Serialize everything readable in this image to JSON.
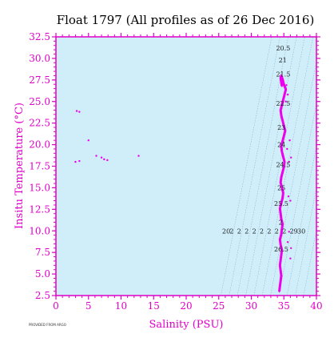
{
  "chart_data": {
    "type": "scatter",
    "title": "Float 1797  (All profiles as of 26 Dec 2016)",
    "xlabel": "Salinity (PSU)",
    "ylabel": "Insitu Temperature (°C)",
    "xlim": [
      0,
      40
    ],
    "ylim": [
      2.5,
      32.5
    ],
    "x_ticks": [
      0,
      5,
      10,
      15,
      20,
      25,
      30,
      35,
      40
    ],
    "y_ticks": [
      2.5,
      5.0,
      7.5,
      10.0,
      12.5,
      15.0,
      17.5,
      20.0,
      22.5,
      25.0,
      27.5,
      30.0,
      32.5
    ],
    "y_tick_labels": [
      "2.5",
      "5.0",
      "7.5",
      "10.0",
      "12.5",
      "15.0",
      "17.5",
      "20.0",
      "22.5",
      "25.0",
      "27.5",
      "30.0",
      "32.5"
    ],
    "grid": false,
    "colors": {
      "plot_background": "#cfeefa",
      "points": "#ee00ee",
      "axis": "#e000c8",
      "contour": "#8fa9c8"
    },
    "series": [
      {
        "x": [
          3.2,
          3.6,
          5.0,
          3.0,
          3.6,
          6.2,
          7.0,
          7.4,
          7.9,
          12.7,
          34.3,
          34.4,
          34.5,
          34.6,
          34.5,
          34.4,
          34.5,
          34.6,
          34.7,
          34.5,
          34.4,
          34.6,
          34.7,
          34.8,
          34.6,
          34.5,
          34.4,
          34.6,
          34.8,
          34.9,
          34.7,
          34.5,
          34.6,
          34.8,
          35.0,
          35.1,
          34.9,
          34.7,
          34.6,
          34.8,
          35.0,
          35.2,
          35.0,
          34.8,
          34.6,
          34.5,
          34.7,
          34.9,
          35.1,
          35.3,
          35.0,
          34.8,
          34.6,
          34.5,
          34.7,
          35.5,
          35.9,
          36.1,
          35.8,
          35.7,
          36.0,
          35.6,
          36.1,
          35.8,
          36.0,
          35.4,
          35.3,
          35.6
        ],
        "y": [
          23.9,
          23.8,
          20.5,
          18.0,
          18.1,
          18.7,
          18.5,
          18.3,
          18.2,
          18.7,
          3.0,
          3.6,
          4.2,
          4.8,
          5.4,
          6.0,
          6.6,
          7.2,
          7.8,
          8.4,
          9.0,
          9.6,
          10.2,
          10.8,
          11.4,
          12.0,
          12.6,
          13.2,
          13.8,
          14.4,
          15.0,
          15.6,
          16.2,
          16.8,
          17.4,
          18.0,
          18.6,
          19.2,
          19.8,
          20.4,
          21.0,
          21.6,
          22.2,
          22.8,
          23.4,
          24.0,
          24.6,
          25.2,
          25.8,
          26.4,
          27.0,
          27.6,
          28.0,
          27.7,
          26.8,
          19.5,
          20.5,
          18.5,
          18.0,
          14.0,
          13.5,
          8.7,
          8.0,
          9.9,
          6.8,
          26.9,
          25.0,
          25.8
        ]
      }
    ],
    "contours": [
      {
        "label": "20",
        "sigma": 20
      },
      {
        "label": "2",
        "sigma": 21
      },
      {
        "label": "2",
        "sigma": 22
      },
      {
        "label": "2",
        "sigma": 23
      },
      {
        "label": "2",
        "sigma": 24
      },
      {
        "label": "2",
        "sigma": 25
      },
      {
        "label": "2",
        "sigma": 26
      },
      {
        "label": "2",
        "sigma": 27
      },
      {
        "label": "2",
        "sigma": 28
      },
      {
        "label": "29",
        "sigma": 29
      },
      {
        "label": "30",
        "sigma": 30
      }
    ],
    "annotations": [
      {
        "text": "20.5",
        "x": 33.8,
        "y": 31.2
      },
      {
        "text": "21",
        "x": 34.2,
        "y": 29.8
      },
      {
        "text": "21.5",
        "x": 33.8,
        "y": 28.2
      },
      {
        "text": "22.5",
        "x": 33.8,
        "y": 24.8
      },
      {
        "text": "23",
        "x": 34.0,
        "y": 22.0
      },
      {
        "text": "24",
        "x": 34.0,
        "y": 20.0
      },
      {
        "text": "24.5",
        "x": 33.8,
        "y": 17.7
      },
      {
        "text": "25",
        "x": 34.0,
        "y": 15.0
      },
      {
        "text": "25.5",
        "x": 33.5,
        "y": 13.2
      },
      {
        "text": "2",
        "x": 34.2,
        "y": 11.0
      },
      {
        "text": "26.5",
        "x": 33.5,
        "y": 7.9
      }
    ],
    "credit_text": "PROVIDED FROM ARGO"
  }
}
